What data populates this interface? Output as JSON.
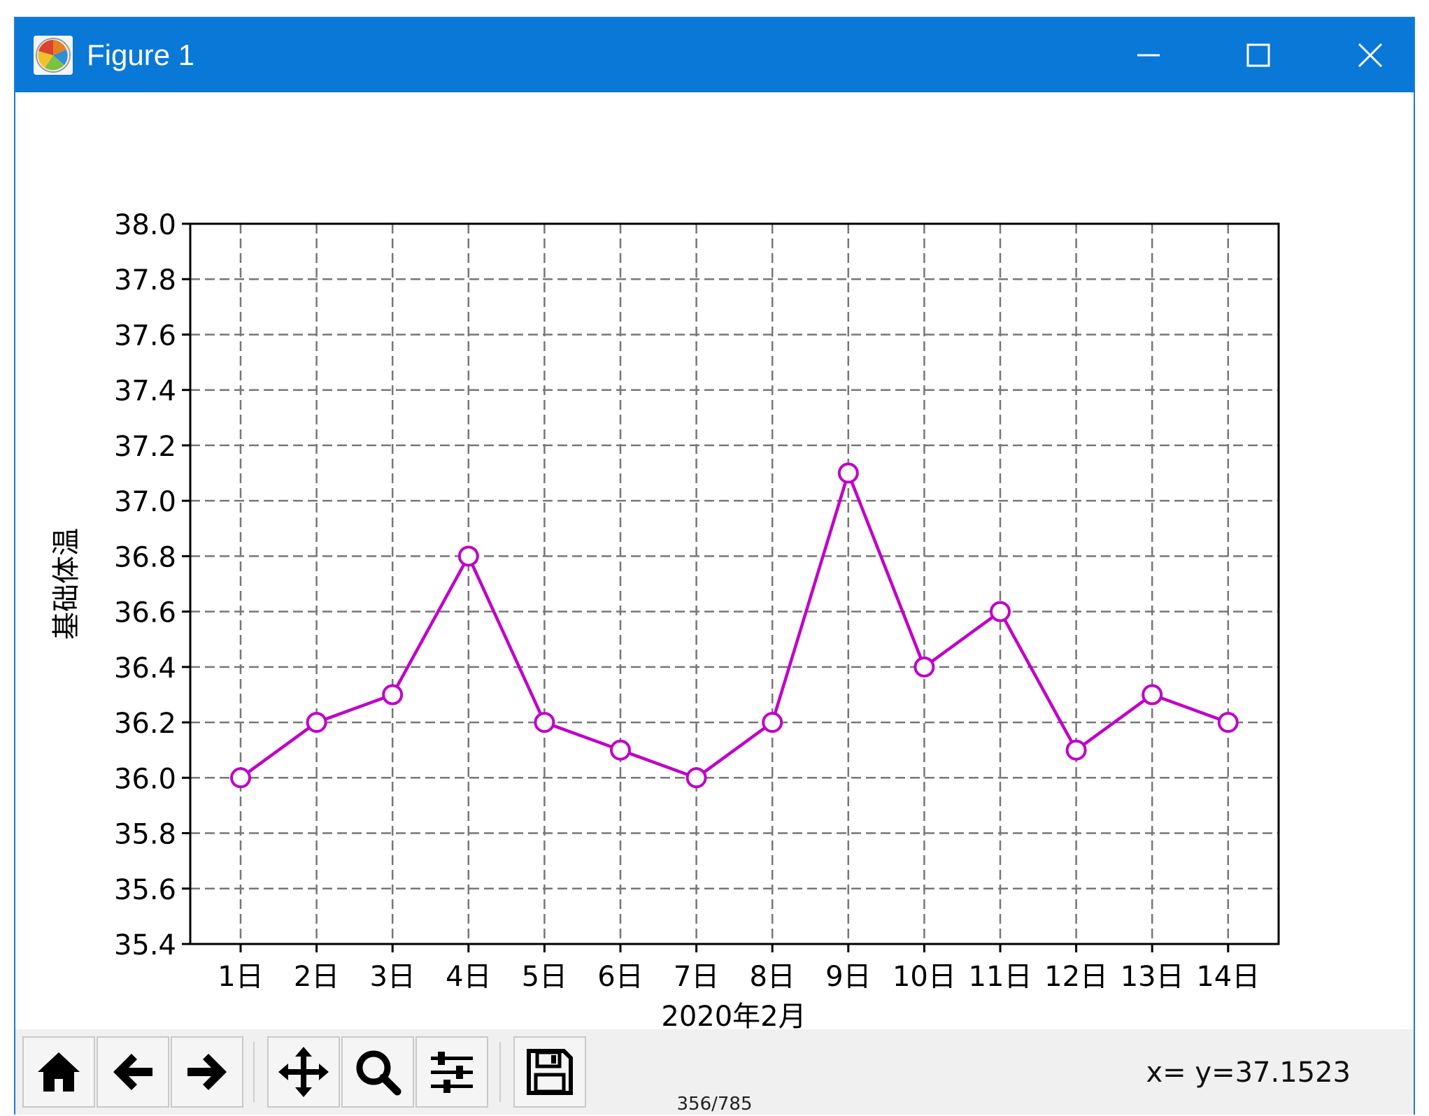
{
  "window": {
    "title": "Figure 1",
    "icon": "matplotlib-icon",
    "controls": {
      "minimize_icon": "minimize-icon",
      "maximize_icon": "maximize-icon",
      "close_icon": "close-icon"
    },
    "titlebar_color": "#0a78d7"
  },
  "chart_data": {
    "type": "line",
    "categories": [
      "1日",
      "2日",
      "3日",
      "4日",
      "5日",
      "6日",
      "7日",
      "8日",
      "9日",
      "10日",
      "11日",
      "12日",
      "13日",
      "14日"
    ],
    "series": [
      {
        "values": [
          36.0,
          36.2,
          36.3,
          36.8,
          36.2,
          36.1,
          36.0,
          36.2,
          37.1,
          36.4,
          36.6,
          36.1,
          36.3,
          36.2
        ],
        "color": "#c000c8",
        "marker": "circle-hollow"
      }
    ],
    "title": "",
    "xlabel": "2020年2月",
    "ylabel": "基础体温",
    "ylim": [
      35.4,
      38.0
    ],
    "yticks": [
      "35.4",
      "35.6",
      "35.8",
      "36.0",
      "36.2",
      "36.4",
      "36.6",
      "36.8",
      "37.0",
      "37.2",
      "37.4",
      "37.6",
      "37.8",
      "38.0"
    ],
    "grid": true,
    "grid_style": "dashed"
  },
  "toolbar": {
    "buttons": [
      {
        "name": "home-button",
        "icon": "home-icon"
      },
      {
        "name": "back-button",
        "icon": "arrow-left-icon"
      },
      {
        "name": "forward-button",
        "icon": "arrow-right-icon"
      },
      {
        "name": "pan-button",
        "icon": "move-icon"
      },
      {
        "name": "zoom-button",
        "icon": "magnifier-icon"
      },
      {
        "name": "configure-subplots-button",
        "icon": "sliders-icon"
      },
      {
        "name": "save-button",
        "icon": "floppy-disk-icon"
      }
    ],
    "coordinates": "x= y=37.1523"
  },
  "page_footer": "356/785"
}
